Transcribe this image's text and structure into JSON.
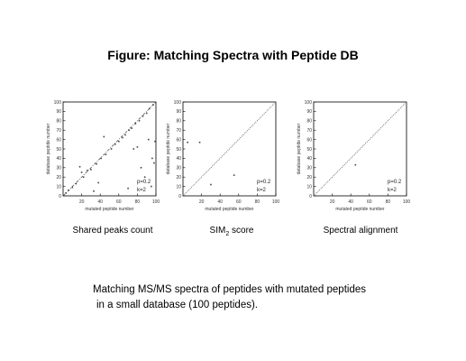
{
  "figure_title": "Figure: Matching Spectra with Peptide DB",
  "footnote": {
    "line1": "Matching MS/MS spectra of peptides with mutated peptides",
    "line2": "in a small database (100 peptides)."
  },
  "chart_data": [
    {
      "type": "scatter",
      "caption": "Shared peaks count",
      "xlabel": "mutated peptide number",
      "ylabel": "database peptide number",
      "xlim": [
        0,
        100
      ],
      "ylim": [
        0,
        100
      ],
      "xticks": [
        "20",
        "40",
        "60",
        "80",
        "100"
      ],
      "yticks": [
        "0",
        "10",
        "20",
        "30",
        "40",
        "50",
        "60",
        "70",
        "80",
        "90",
        "100"
      ],
      "annotations": [
        "p=0.2",
        "k=2"
      ],
      "diagonal": "dash-dot",
      "grid": false,
      "points": [
        [
          3,
          3
        ],
        [
          6,
          6
        ],
        [
          10,
          9
        ],
        [
          14,
          13
        ],
        [
          18,
          31
        ],
        [
          20,
          25
        ],
        [
          22,
          20
        ],
        [
          26,
          27
        ],
        [
          30,
          28
        ],
        [
          33,
          5
        ],
        [
          36,
          34
        ],
        [
          38,
          14
        ],
        [
          41,
          40
        ],
        [
          44,
          63
        ],
        [
          46,
          44
        ],
        [
          52,
          50
        ],
        [
          56,
          55
        ],
        [
          60,
          58
        ],
        [
          64,
          62
        ],
        [
          67,
          65
        ],
        [
          70,
          8
        ],
        [
          71,
          70
        ],
        [
          74,
          72
        ],
        [
          76,
          50
        ],
        [
          78,
          77
        ],
        [
          80,
          52
        ],
        [
          82,
          80
        ],
        [
          84,
          30
        ],
        [
          86,
          85
        ],
        [
          88,
          20
        ],
        [
          90,
          88
        ],
        [
          92,
          60
        ],
        [
          93,
          93
        ],
        [
          95,
          10
        ],
        [
          96,
          40
        ],
        [
          98,
          35
        ],
        [
          99,
          58
        ],
        [
          97,
          97
        ]
      ]
    },
    {
      "type": "scatter",
      "caption": "SIM₂ score",
      "xlabel": "mutated peptide number",
      "ylabel": "database peptide number",
      "xlim": [
        0,
        100
      ],
      "ylim": [
        0,
        100
      ],
      "xticks": [
        "20",
        "40",
        "60",
        "80",
        "100"
      ],
      "yticks": [
        "0",
        "10",
        "20",
        "30",
        "40",
        "50",
        "60",
        "70",
        "80",
        "90",
        "100"
      ],
      "annotations": [
        "p=0.2",
        "k=2"
      ],
      "diagonal": "dotted",
      "grid": false,
      "points": [
        [
          5,
          57
        ],
        [
          18,
          57
        ],
        [
          30,
          12
        ],
        [
          55,
          22
        ]
      ]
    },
    {
      "type": "scatter",
      "caption": "Spectral alignment",
      "xlabel": "mutated peptide number",
      "ylabel": "database peptide number",
      "xlim": [
        0,
        100
      ],
      "ylim": [
        0,
        100
      ],
      "xticks": [
        "20",
        "40",
        "60",
        "80",
        "100"
      ],
      "yticks": [
        "0",
        "10",
        "20",
        "30",
        "40",
        "50",
        "60",
        "70",
        "80",
        "90",
        "100"
      ],
      "annotations": [
        "p=0.2",
        "k=2"
      ],
      "diagonal": "dotted",
      "grid": false,
      "points": [
        [
          45,
          33
        ]
      ]
    }
  ]
}
